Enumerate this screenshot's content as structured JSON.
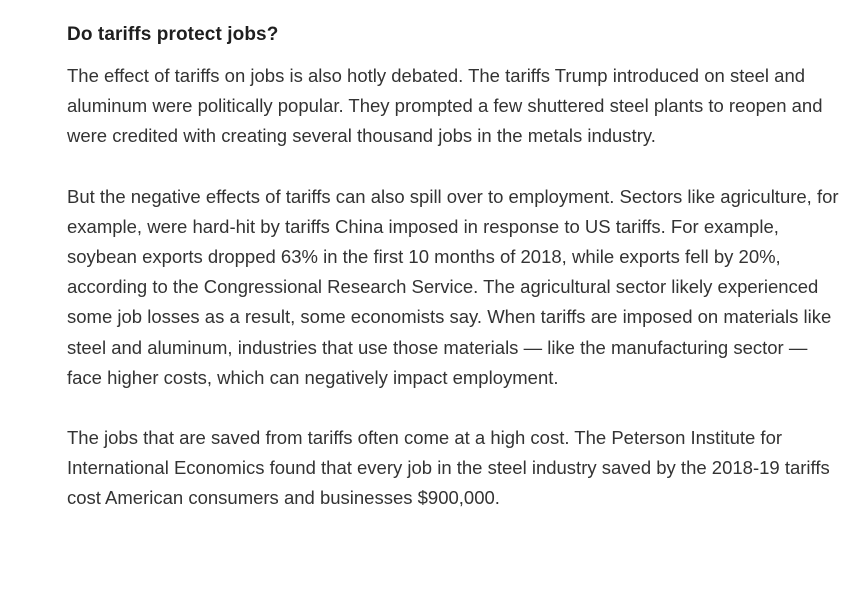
{
  "article": {
    "heading": "Do tariffs protect jobs?",
    "paragraphs": [
      "The effect of tariffs on jobs is also hotly debated. The tariffs Trump introduced on steel and aluminum were politically popular. They prompted a few shuttered steel plants to reopen and were credited with creating several thousand jobs in the metals industry.",
      "But the negative effects of tariffs can also spill over to employment. Sectors like agriculture, for example, were hard-hit by tariffs China imposed in response to US tariffs. For example, soybean exports dropped 63% in the first 10 months of 2018, while exports fell by 20%, according to the Congressional Research Service. The agricultural sector likely experienced some job losses as a result, some economists say. When tariffs are imposed on materials like steel and aluminum, industries that use those materials — like the manufacturing sector — face higher costs, which can negatively impact employment.",
      "The jobs that are saved from tariffs often come at a high cost. The Peterson Institute for International Economics found that every job in the steel industry saved by the 2018-19 tariffs cost American consumers and businesses $900,000."
    ]
  }
}
